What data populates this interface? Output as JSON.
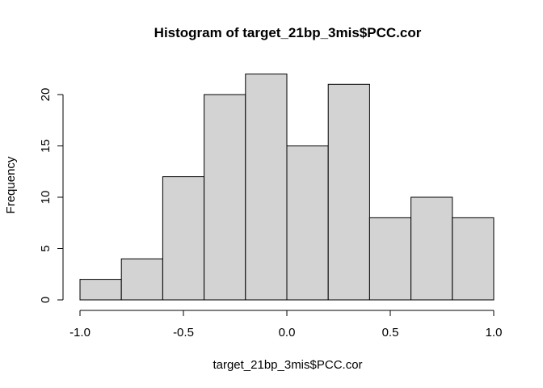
{
  "chart_data": {
    "type": "bar",
    "title": "Histogram of target_21bp_3mis$PCC.cor",
    "xlabel": "target_21bp_3mis$PCC.cor",
    "ylabel": "Frequency",
    "bins": [
      {
        "x0": -1.0,
        "x1": -0.8,
        "count": 2
      },
      {
        "x0": -0.8,
        "x1": -0.6,
        "count": 4
      },
      {
        "x0": -0.6,
        "x1": -0.4,
        "count": 12
      },
      {
        "x0": -0.4,
        "x1": -0.2,
        "count": 20
      },
      {
        "x0": -0.2,
        "x1": 0.0,
        "count": 22
      },
      {
        "x0": 0.0,
        "x1": 0.2,
        "count": 15
      },
      {
        "x0": 0.2,
        "x1": 0.4,
        "count": 21
      },
      {
        "x0": 0.4,
        "x1": 0.6,
        "count": 8
      },
      {
        "x0": 0.6,
        "x1": 0.8,
        "count": 10
      },
      {
        "x0": 0.8,
        "x1": 1.0,
        "count": 8
      }
    ],
    "xlim": [
      -1.0,
      1.0
    ],
    "ylim": [
      0,
      22
    ],
    "xticks": [
      -1.0,
      -0.5,
      0.0,
      0.5,
      1.0
    ],
    "xtick_labels": [
      "-1.0",
      "-0.5",
      "0.0",
      "0.5",
      "1.0"
    ],
    "yticks": [
      0,
      5,
      10,
      15,
      20
    ],
    "ytick_labels": [
      "0",
      "5",
      "10",
      "15",
      "20"
    ],
    "bar_color": "#d3d3d3",
    "grid": false,
    "legend": "none"
  }
}
